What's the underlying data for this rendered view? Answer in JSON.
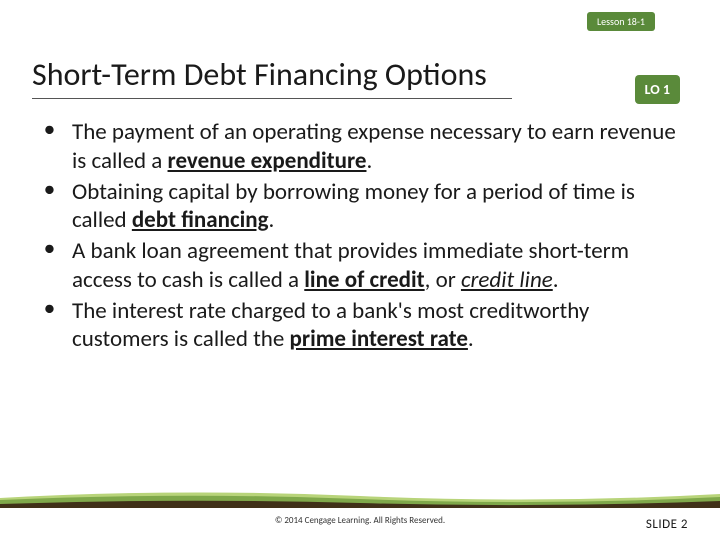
{
  "badges": {
    "lesson": "Lesson 18-1",
    "lo": "LO 1"
  },
  "title": "Short-Term Debt Financing Options",
  "bullets": [
    {
      "parts": [
        {
          "text": "The payment of an operating expense necessary to earn revenue is called a ",
          "style": "normal"
        },
        {
          "text": "revenue expenditure",
          "style": "bold-underline"
        },
        {
          "text": ".",
          "style": "normal"
        }
      ]
    },
    {
      "parts": [
        {
          "text": "Obtaining capital by borrowing money for a period of time is called ",
          "style": "normal"
        },
        {
          "text": "debt financing",
          "style": "bold-underline"
        },
        {
          "text": ".",
          "style": "normal"
        }
      ]
    },
    {
      "parts": [
        {
          "text": "A bank loan agreement that provides immediate short-term access to cash is called a ",
          "style": "normal"
        },
        {
          "text": "line of credit",
          "style": "bold-underline"
        },
        {
          "text": ", or ",
          "style": "normal"
        },
        {
          "text": "credit line",
          "style": "italic-underline"
        },
        {
          "text": ".",
          "style": "normal"
        }
      ]
    },
    {
      "parts": [
        {
          "text": "The interest rate charged to a bank's most creditworthy customers is called the ",
          "style": "normal"
        },
        {
          "text": "prime interest rate",
          "style": "bold-underline"
        },
        {
          "text": ".",
          "style": "normal"
        }
      ]
    }
  ],
  "footer": {
    "copyright": "© 2014 Cengage Learning. All Rights Reserved.",
    "slide_number": "SLIDE 2"
  },
  "colors": {
    "badge_bg": "#5a8a3a",
    "wave_dark": "#403018",
    "wave_mid": "#7fa84a",
    "wave_light": "#b8d47a"
  }
}
